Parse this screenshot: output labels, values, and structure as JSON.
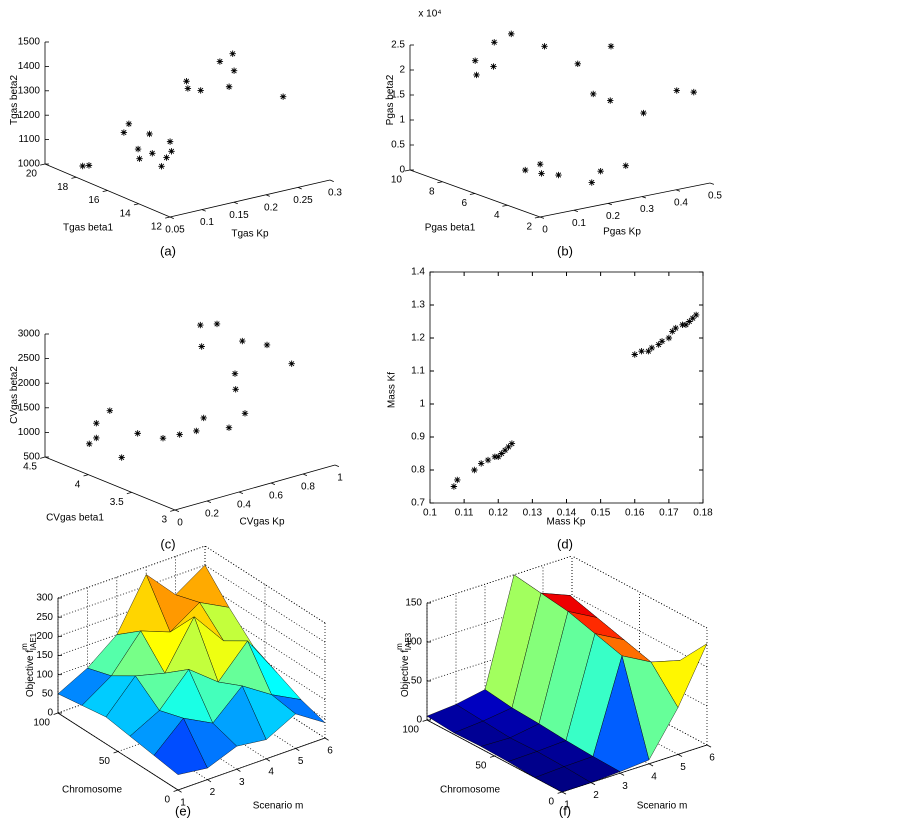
{
  "chart_data": [
    {
      "type": "scatter3d",
      "caption": "(a)",
      "xlabel": "Tgas Kp",
      "ylabel": "Tgas beta1",
      "zlabel": "Tgas beta2",
      "color": "#000000",
      "x": [
        0.06,
        0.065,
        0.1,
        0.11,
        0.12,
        0.13,
        0.1,
        0.12,
        0.14,
        0.15,
        0.16,
        0.11,
        0.2,
        0.21,
        0.22,
        0.25,
        0.26,
        0.27,
        0.24,
        0.3
      ],
      "y": [
        18,
        17.8,
        16,
        16.5,
        16,
        15.5,
        17,
        17.5,
        17,
        16,
        16.5,
        15,
        17,
        17.5,
        17,
        17,
        16.5,
        17,
        16,
        15
      ],
      "z": [
        1040,
        1045,
        1100,
        1120,
        1110,
        1100,
        1180,
        1190,
        1150,
        1100,
        1120,
        1090,
        1300,
        1310,
        1280,
        1380,
        1350,
        1400,
        1310,
        1260
      ],
      "xlim": [
        0.05,
        0.3
      ],
      "xticks": [
        0.05,
        0.1,
        0.15,
        0.2,
        0.25,
        0.3
      ],
      "ylim": [
        12,
        20
      ],
      "yticks": [
        12,
        14,
        16,
        18,
        20
      ],
      "zlim": [
        1000,
        1500
      ],
      "zticks": [
        1000,
        1100,
        1200,
        1300,
        1400,
        1500
      ]
    },
    {
      "type": "scatter3d",
      "caption": "(b)",
      "xlabel": "Pgas Kp",
      "ylabel": "Pgas beta1",
      "zlabel": "Pgas beta2",
      "zmultiplier": "x 10⁴",
      "color": "#000000",
      "x": [
        0.1,
        0.12,
        0.15,
        0.1,
        0.2,
        0.25,
        0.3,
        0.1,
        0.12,
        0.15,
        0.2,
        0.25,
        0.3,
        0.35,
        0.3,
        0.35,
        0.4,
        0.45,
        0.5,
        0.4
      ],
      "y": [
        4,
        4.5,
        4,
        5,
        3,
        3.5,
        3,
        8,
        8.5,
        8,
        9,
        9,
        8,
        7,
        5,
        5,
        4,
        3,
        3,
        6
      ],
      "z": [
        5000,
        6000,
        4000,
        4500,
        3000,
        4000,
        5000,
        20000,
        22000,
        21000,
        24000,
        25000,
        23000,
        20000,
        17000,
        15000,
        13000,
        18000,
        17000,
        24000
      ],
      "xlim": [
        0,
        0.5
      ],
      "xticks": [
        0,
        0.1,
        0.2,
        0.3,
        0.4,
        0.5
      ],
      "ylim": [
        2,
        10
      ],
      "yticks": [
        2,
        4,
        6,
        8,
        10
      ],
      "zlim": [
        0,
        25000
      ],
      "zticks": [
        0,
        {
          "value": 5000,
          "label": "0.5"
        },
        {
          "value": 10000,
          "label": "1"
        },
        {
          "value": 15000,
          "label": "1.5"
        },
        {
          "value": 20000,
          "label": "2"
        },
        {
          "value": 25000,
          "label": "2.5"
        }
      ]
    },
    {
      "type": "scatter3d",
      "caption": "(c)",
      "xlabel": "CVgas Kp",
      "ylabel": "CVgas beta1",
      "zlabel": "CVgas beta2",
      "color": "#000000",
      "x": [
        0.05,
        0.05,
        0.06,
        0.1,
        0.08,
        0.2,
        0.25,
        0.3,
        0.35,
        0.45,
        0.5,
        0.6,
        0.65,
        0.7,
        0.6,
        0.7,
        0.75,
        0.8,
        0.9,
        1
      ],
      "y": [
        4,
        4,
        4.1,
        3.8,
        3.9,
        3.8,
        3.6,
        3.5,
        3.4,
        3.5,
        3.3,
        3.3,
        3.5,
        3.6,
        3.8,
        4,
        3.9,
        3.7,
        3.6,
        3.5
      ],
      "z": [
        1500,
        1200,
        1000,
        900,
        1800,
        1300,
        1300,
        1400,
        1500,
        1600,
        1500,
        1700,
        2000,
        2200,
        2700,
        2900,
        2950,
        2700,
        2600,
        2200
      ],
      "xlim": [
        0,
        1
      ],
      "xticks": [
        0,
        0.2,
        0.4,
        0.6,
        0.8,
        1
      ],
      "ylim": [
        3,
        4.5
      ],
      "yticks": [
        3,
        3.5,
        4,
        4.5
      ],
      "zlim": [
        500,
        3000
      ],
      "zticks": [
        500,
        1000,
        1500,
        2000,
        2500,
        3000
      ]
    },
    {
      "type": "scatter",
      "caption": "(d)",
      "xlabel": "Mass Kp",
      "ylabel": "Mass Kf",
      "color": "#000000",
      "x": [
        0.107,
        0.108,
        0.113,
        0.115,
        0.117,
        0.119,
        0.12,
        0.121,
        0.122,
        0.123,
        0.124,
        0.16,
        0.162,
        0.164,
        0.165,
        0.167,
        0.168,
        0.17,
        0.171,
        0.172,
        0.174,
        0.175,
        0.176,
        0.177,
        0.178
      ],
      "y": [
        0.75,
        0.77,
        0.8,
        0.82,
        0.83,
        0.84,
        0.84,
        0.85,
        0.86,
        0.87,
        0.88,
        1.15,
        1.16,
        1.16,
        1.17,
        1.18,
        1.19,
        1.2,
        1.22,
        1.23,
        1.24,
        1.24,
        1.25,
        1.26,
        1.27
      ],
      "xlim": [
        0.1,
        0.18
      ],
      "xticks": [
        0.1,
        0.11,
        0.12,
        0.13,
        0.14,
        0.15,
        0.16,
        0.17,
        0.18
      ],
      "ylim": [
        0.7,
        1.4
      ],
      "yticks": [
        0.7,
        0.8,
        0.9,
        1,
        1.1,
        1.2,
        1.3,
        1.4
      ]
    },
    {
      "type": "surface",
      "caption": "(e)",
      "xlabel": "Scenario m",
      "ylabel": "Chromosome",
      "zlabel": "Objective f",
      "zlabel_sup": "m",
      "zlabel_sub": "IAE1",
      "colormap": "jet",
      "edgecolor": "#000000",
      "grid": true,
      "x": [
        1,
        2,
        3,
        4,
        5,
        6
      ],
      "y": [
        0,
        20,
        40,
        60,
        80,
        100
      ],
      "z": [
        [
          40,
          30,
          60,
          50,
          90,
          40
        ],
        [
          50,
          120,
          80,
          150,
          100,
          60
        ],
        [
          60,
          100,
          180,
          120,
          200,
          90
        ],
        [
          70,
          150,
          130,
          250,
          160,
          120
        ],
        [
          60,
          110,
          200,
          170,
          220,
          180
        ],
        [
          50,
          90,
          150,
          280,
          200,
          250
        ]
      ],
      "xlim": [
        1,
        6
      ],
      "xticks": [
        1,
        2,
        3,
        4,
        5,
        6
      ],
      "ylim": [
        0,
        100
      ],
      "yticks": [
        0,
        50,
        100
      ],
      "zlim": [
        0,
        300
      ],
      "zticks": [
        0,
        50,
        100,
        150,
        200,
        250,
        300
      ]
    },
    {
      "type": "surface",
      "caption": "(f)",
      "xlabel": "Scenario m",
      "ylabel": "Chromosome",
      "zlabel": "Objective f",
      "zlabel_sup": "m",
      "zlabel_sub": "IAE3",
      "colormap": "jet",
      "edgecolor": "#000000",
      "grid": true,
      "x": [
        1,
        2,
        3,
        4,
        5,
        6
      ],
      "y": [
        0,
        20,
        40,
        60,
        80,
        100
      ],
      "z": [
        [
          0,
          0,
          2,
          5,
          60,
          130
        ],
        [
          0,
          2,
          3,
          120,
          100,
          90
        ],
        [
          2,
          3,
          5,
          130,
          110,
          60
        ],
        [
          3,
          2,
          8,
          140,
          120,
          40
        ],
        [
          2,
          5,
          10,
          145,
          130,
          20
        ],
        [
          5,
          8,
          15,
          150,
          100,
          10
        ]
      ],
      "xlim": [
        1,
        6
      ],
      "xticks": [
        1,
        2,
        3,
        4,
        5,
        6
      ],
      "ylim": [
        0,
        100
      ],
      "yticks": [
        0,
        50,
        100
      ],
      "zlim": [
        0,
        150
      ],
      "zticks": [
        0,
        50,
        100,
        150
      ]
    }
  ]
}
